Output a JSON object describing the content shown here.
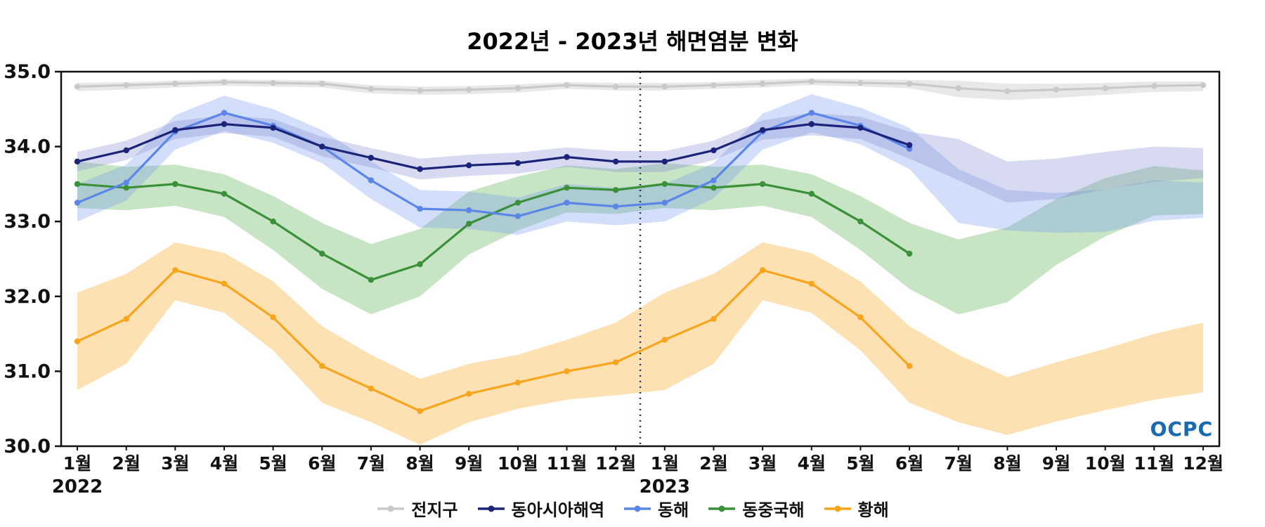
{
  "title": "2022년 - 2023년 해면염분 변화",
  "logo_text": "OCPC",
  "chart_data": {
    "type": "line",
    "title": "2022년 - 2023년 해면염분 변화",
    "xlabel": "",
    "ylabel": "",
    "grid": false,
    "legend_position": "bottom",
    "ylim": [
      30.0,
      35.0
    ],
    "yticks": [
      30.0,
      31.0,
      32.0,
      33.0,
      34.0,
      35.0
    ],
    "x_labels": [
      "1월",
      "2월",
      "3월",
      "4월",
      "5월",
      "6월",
      "7월",
      "8월",
      "9월",
      "10월",
      "11월",
      "12월",
      "1월",
      "2월",
      "3월",
      "4월",
      "5월",
      "6월",
      "7월",
      "8월",
      "9월",
      "10월",
      "11월",
      "12월"
    ],
    "year_labels": [
      {
        "index": 0,
        "text": "2022"
      },
      {
        "index": 12,
        "text": "2023"
      }
    ],
    "divider_after_index": 11,
    "divider_color": "#1f3864",
    "series": [
      {
        "name": "전지구",
        "key": "global",
        "z": 1,
        "color": "#c9c9c9",
        "band_color": "rgba(205,205,205,0.45)",
        "values": [
          34.8,
          34.82,
          34.84,
          34.86,
          34.85,
          34.84,
          34.77,
          34.75,
          34.76,
          34.78,
          34.82,
          34.8,
          34.8,
          34.82,
          34.84,
          34.87,
          34.85,
          34.84,
          34.78,
          34.74,
          34.76,
          34.78,
          34.81,
          34.82
        ],
        "band_upper": [
          34.85,
          34.86,
          34.88,
          34.9,
          34.89,
          34.88,
          34.82,
          34.8,
          34.81,
          34.83,
          34.86,
          34.85,
          34.85,
          34.86,
          34.89,
          34.91,
          34.9,
          34.89,
          34.88,
          34.84,
          34.84,
          34.85,
          34.87,
          34.87
        ],
        "band_lower": [
          34.74,
          34.76,
          34.79,
          34.81,
          34.8,
          34.79,
          34.71,
          34.69,
          34.7,
          34.72,
          34.77,
          34.75,
          34.75,
          34.77,
          34.79,
          34.82,
          34.8,
          34.78,
          34.66,
          34.62,
          34.65,
          34.69,
          34.73,
          34.74
        ]
      },
      {
        "name": "동아시아해역",
        "key": "east-asia",
        "z": 5,
        "color": "#1b2478",
        "band_color": "rgba(130,140,210,0.32)",
        "values": [
          33.8,
          33.95,
          34.22,
          34.3,
          34.25,
          34.0,
          33.85,
          33.7,
          33.75,
          33.78,
          33.86,
          33.8,
          33.8,
          33.95,
          34.22,
          34.3,
          34.25,
          34.02,
          null,
          null,
          null,
          null,
          null,
          null
        ],
        "band_upper": [
          33.93,
          34.08,
          34.34,
          34.42,
          34.37,
          34.13,
          33.98,
          33.84,
          33.89,
          33.92,
          33.99,
          33.94,
          33.94,
          34.08,
          34.35,
          34.45,
          34.4,
          34.2,
          34.1,
          33.8,
          33.84,
          33.93,
          34.0,
          33.98
        ],
        "band_lower": [
          33.67,
          33.82,
          34.1,
          34.18,
          34.13,
          33.87,
          33.72,
          33.56,
          33.61,
          33.64,
          33.73,
          33.66,
          33.66,
          33.82,
          34.09,
          34.15,
          34.1,
          33.84,
          33.55,
          33.25,
          33.3,
          33.43,
          33.53,
          33.58
        ]
      },
      {
        "name": "동해",
        "key": "east-sea",
        "z": 4,
        "color": "#5b86e8",
        "band_color": "rgba(110,150,240,0.30)",
        "values": [
          33.25,
          33.52,
          34.2,
          34.45,
          34.28,
          34.0,
          33.55,
          33.17,
          33.15,
          33.07,
          33.25,
          33.2,
          33.25,
          33.55,
          34.2,
          34.45,
          34.28,
          33.97,
          null,
          null,
          null,
          null,
          null,
          null
        ],
        "band_upper": [
          33.5,
          33.76,
          34.42,
          34.68,
          34.5,
          34.22,
          33.8,
          33.42,
          33.4,
          33.32,
          33.5,
          33.45,
          33.5,
          33.78,
          34.44,
          34.7,
          34.52,
          34.25,
          33.7,
          33.42,
          33.38,
          33.43,
          33.55,
          33.52
        ],
        "band_lower": [
          33.0,
          33.28,
          33.96,
          34.21,
          34.05,
          33.78,
          33.3,
          32.92,
          32.9,
          32.82,
          33.0,
          32.95,
          33.0,
          33.31,
          33.96,
          34.19,
          34.03,
          33.7,
          32.98,
          32.88,
          32.85,
          32.86,
          33.01,
          33.05
        ]
      },
      {
        "name": "동중국해",
        "key": "east-china-sea",
        "z": 2,
        "color": "#3a9139",
        "band_color": "rgba(130,195,125,0.45)",
        "values": [
          33.5,
          33.45,
          33.5,
          33.37,
          33.0,
          32.57,
          32.22,
          32.43,
          32.97,
          33.25,
          33.45,
          33.42,
          33.5,
          33.45,
          33.5,
          33.37,
          33.0,
          32.57,
          null,
          null,
          null,
          null,
          null,
          null
        ],
        "band_upper": [
          33.8,
          33.73,
          33.76,
          33.63,
          33.34,
          32.98,
          32.7,
          32.9,
          33.4,
          33.6,
          33.75,
          33.7,
          33.78,
          33.73,
          33.76,
          33.63,
          33.34,
          32.98,
          32.76,
          32.92,
          33.3,
          33.58,
          33.74,
          33.68
        ],
        "band_lower": [
          33.18,
          33.15,
          33.21,
          33.06,
          32.62,
          32.1,
          31.76,
          32.0,
          32.56,
          32.88,
          33.12,
          33.1,
          33.18,
          33.15,
          33.21,
          33.06,
          32.62,
          32.1,
          31.76,
          31.92,
          32.42,
          32.8,
          33.08,
          33.1
        ]
      },
      {
        "name": "황해",
        "key": "yellow-sea",
        "z": 3,
        "color": "#f6a51d",
        "band_color": "rgba(253,196,101,0.50)",
        "values": [
          31.4,
          31.7,
          32.35,
          32.17,
          31.72,
          31.07,
          30.77,
          30.47,
          30.7,
          30.85,
          31.0,
          31.12,
          31.42,
          31.7,
          32.35,
          32.17,
          31.72,
          31.07,
          null,
          null,
          null,
          null,
          null,
          null
        ],
        "band_upper": [
          32.05,
          32.3,
          32.72,
          32.58,
          32.2,
          31.6,
          31.22,
          30.9,
          31.1,
          31.22,
          31.42,
          31.65,
          32.05,
          32.3,
          32.72,
          32.58,
          32.2,
          31.6,
          31.22,
          30.92,
          31.12,
          31.3,
          31.5,
          31.65
        ],
        "band_lower": [
          30.75,
          31.1,
          31.95,
          31.78,
          31.28,
          30.58,
          30.32,
          30.02,
          30.32,
          30.5,
          30.62,
          30.68,
          30.75,
          31.1,
          31.95,
          31.78,
          31.28,
          30.58,
          30.32,
          30.15,
          30.33,
          30.48,
          30.62,
          30.72
        ]
      }
    ]
  }
}
